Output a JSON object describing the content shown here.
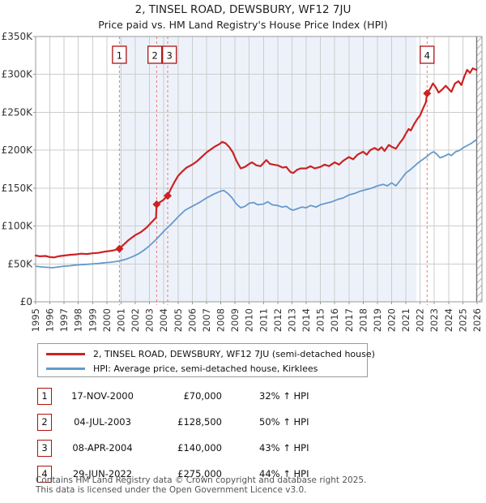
{
  "title": "2, TINSEL ROAD, DEWSBURY, WF12 7JU",
  "subtitle": "Price paid vs. HM Land Registry's House Price Index (HPI)",
  "chart_data": {
    "type": "line",
    "title": "2, TINSEL ROAD, DEWSBURY, WF12 7JU",
    "subtitle": "Price paid vs. HM Land Registry's House Price Index (HPI)",
    "grid": true,
    "legend_position": "below",
    "x_axis": {
      "start_year": 1995,
      "end_year": 2026,
      "tick_labels": [
        "1995",
        "1996",
        "1997",
        "1998",
        "1999",
        "2000",
        "2001",
        "2002",
        "2003",
        "2004",
        "2005",
        "2006",
        "2007",
        "2008",
        "2009",
        "2010",
        "2011",
        "2012",
        "2013",
        "2014",
        "2015",
        "2016",
        "2017",
        "2018",
        "2019",
        "2020",
        "2021",
        "2022",
        "2023",
        "2024",
        "2025",
        "2026"
      ]
    },
    "y_axis": {
      "min_k": 0,
      "max_k": 350,
      "tick_values_k": [
        0,
        50,
        100,
        150,
        200,
        250,
        300,
        350
      ],
      "tick_labels": [
        "£0",
        "£50K",
        "£100K",
        "£150K",
        "£200K",
        "£250K",
        "£300K",
        "£350K"
      ]
    },
    "highlight_span": {
      "from_year": 2000.88,
      "to_year": 2021.75
    },
    "hatch_span": {
      "from_year": 2025.97
    },
    "colors": {
      "property_line": "#cc2222",
      "hpi_line": "#6699cc",
      "highlight": "#edf2fa",
      "sale_dashed_line": "#ee7777",
      "sale_box_border": "#b01111",
      "gridline": "#cccccc",
      "frame": "#999999",
      "hatch": "#b8b8b8"
    },
    "series": [
      {
        "name": "2, TINSEL ROAD, DEWSBURY, WF12 7JU (semi-detached house)",
        "color": "#cc2222",
        "unit": "GBP thousands",
        "points": [
          [
            1995.0,
            61
          ],
          [
            1995.3,
            60
          ],
          [
            1995.7,
            60.5
          ],
          [
            1996.0,
            59
          ],
          [
            1996.3,
            58.5
          ],
          [
            1996.6,
            60
          ],
          [
            1997.0,
            61
          ],
          [
            1997.4,
            62
          ],
          [
            1997.8,
            62.5
          ],
          [
            1998.2,
            63.5
          ],
          [
            1998.6,
            63
          ],
          [
            1999.0,
            64
          ],
          [
            1999.4,
            64.5
          ],
          [
            1999.8,
            66
          ],
          [
            2000.2,
            67
          ],
          [
            2000.5,
            68
          ],
          [
            2000.88,
            70
          ],
          [
            2001.1,
            74
          ],
          [
            2001.5,
            81
          ],
          [
            2002.0,
            88
          ],
          [
            2002.4,
            92
          ],
          [
            2002.8,
            98
          ],
          [
            2003.1,
            104
          ],
          [
            2003.45,
            111
          ],
          [
            2003.5,
            128.5
          ],
          [
            2003.7,
            131
          ],
          [
            2003.95,
            134
          ],
          [
            2004.27,
            140
          ],
          [
            2004.5,
            149
          ],
          [
            2004.75,
            158
          ],
          [
            2005.0,
            166
          ],
          [
            2005.3,
            172
          ],
          [
            2005.6,
            177
          ],
          [
            2006.0,
            181
          ],
          [
            2006.3,
            185
          ],
          [
            2006.6,
            190
          ],
          [
            2007.0,
            197
          ],
          [
            2007.3,
            201
          ],
          [
            2007.6,
            205
          ],
          [
            2007.9,
            208
          ],
          [
            2008.1,
            211
          ],
          [
            2008.35,
            209
          ],
          [
            2008.6,
            204
          ],
          [
            2008.85,
            197
          ],
          [
            2009.1,
            186
          ],
          [
            2009.4,
            176
          ],
          [
            2009.7,
            178
          ],
          [
            2010.0,
            182
          ],
          [
            2010.2,
            184
          ],
          [
            2010.5,
            180
          ],
          [
            2010.8,
            179
          ],
          [
            2011.0,
            183
          ],
          [
            2011.2,
            187
          ],
          [
            2011.45,
            182
          ],
          [
            2011.7,
            181
          ],
          [
            2012.0,
            180
          ],
          [
            2012.35,
            177
          ],
          [
            2012.6,
            178
          ],
          [
            2012.9,
            171
          ],
          [
            2013.1,
            170
          ],
          [
            2013.35,
            174
          ],
          [
            2013.6,
            176
          ],
          [
            2014.0,
            176
          ],
          [
            2014.3,
            179
          ],
          [
            2014.6,
            176
          ],
          [
            2015.0,
            178
          ],
          [
            2015.3,
            181
          ],
          [
            2015.6,
            179
          ],
          [
            2016.0,
            184
          ],
          [
            2016.3,
            181
          ],
          [
            2016.6,
            186
          ],
          [
            2017.0,
            191
          ],
          [
            2017.3,
            188
          ],
          [
            2017.6,
            194
          ],
          [
            2018.0,
            198
          ],
          [
            2018.25,
            194
          ],
          [
            2018.5,
            200
          ],
          [
            2018.8,
            203
          ],
          [
            2019.05,
            200
          ],
          [
            2019.3,
            204
          ],
          [
            2019.5,
            199
          ],
          [
            2019.8,
            207
          ],
          [
            2020.05,
            204
          ],
          [
            2020.3,
            202
          ],
          [
            2020.55,
            209
          ],
          [
            2020.8,
            215
          ],
          [
            2021.0,
            222
          ],
          [
            2021.2,
            228
          ],
          [
            2021.35,
            226
          ],
          [
            2021.6,
            235
          ],
          [
            2021.8,
            241
          ],
          [
            2022.0,
            246
          ],
          [
            2022.2,
            255
          ],
          [
            2022.4,
            263
          ],
          [
            2022.49,
            275
          ],
          [
            2022.7,
            281
          ],
          [
            2022.9,
            288
          ],
          [
            2023.1,
            283
          ],
          [
            2023.3,
            276
          ],
          [
            2023.55,
            280
          ],
          [
            2023.8,
            285
          ],
          [
            2024.0,
            281
          ],
          [
            2024.2,
            277
          ],
          [
            2024.45,
            288
          ],
          [
            2024.7,
            291
          ],
          [
            2024.9,
            286
          ],
          [
            2025.1,
            297
          ],
          [
            2025.3,
            306
          ],
          [
            2025.5,
            302
          ],
          [
            2025.7,
            308
          ],
          [
            2025.95,
            306
          ]
        ]
      },
      {
        "name": "HPI: Average price, semi-detached house, Kirklees",
        "color": "#6699cc",
        "unit": "GBP thousands",
        "points": [
          [
            1995.0,
            47
          ],
          [
            1995.4,
            46
          ],
          [
            1995.8,
            45.5
          ],
          [
            1996.2,
            45
          ],
          [
            1996.6,
            46
          ],
          [
            1997.0,
            47
          ],
          [
            1997.4,
            47.5
          ],
          [
            1997.8,
            48.5
          ],
          [
            1998.2,
            49
          ],
          [
            1998.6,
            49.5
          ],
          [
            1999.0,
            50
          ],
          [
            1999.4,
            50.5
          ],
          [
            1999.8,
            51.5
          ],
          [
            2000.2,
            52
          ],
          [
            2000.6,
            53
          ],
          [
            2001.0,
            54.5
          ],
          [
            2001.4,
            56.5
          ],
          [
            2001.8,
            59.5
          ],
          [
            2002.2,
            63
          ],
          [
            2002.6,
            68
          ],
          [
            2003.0,
            74
          ],
          [
            2003.5,
            83
          ],
          [
            2004.0,
            93
          ],
          [
            2004.27,
            98
          ],
          [
            2004.6,
            104
          ],
          [
            2005.0,
            112
          ],
          [
            2005.5,
            121
          ],
          [
            2006.0,
            126
          ],
          [
            2006.5,
            131
          ],
          [
            2007.0,
            137
          ],
          [
            2007.5,
            142
          ],
          [
            2008.0,
            146
          ],
          [
            2008.2,
            147
          ],
          [
            2008.5,
            143
          ],
          [
            2008.8,
            137
          ],
          [
            2009.1,
            129
          ],
          [
            2009.4,
            124
          ],
          [
            2009.7,
            126
          ],
          [
            2010.0,
            130
          ],
          [
            2010.3,
            131
          ],
          [
            2010.6,
            128
          ],
          [
            2011.0,
            129
          ],
          [
            2011.3,
            132
          ],
          [
            2011.6,
            128
          ],
          [
            2012.0,
            127
          ],
          [
            2012.3,
            125
          ],
          [
            2012.6,
            126
          ],
          [
            2012.9,
            122
          ],
          [
            2013.1,
            121
          ],
          [
            2013.4,
            123
          ],
          [
            2013.7,
            125
          ],
          [
            2014.0,
            124
          ],
          [
            2014.3,
            127
          ],
          [
            2014.7,
            125
          ],
          [
            2015.0,
            128
          ],
          [
            2015.4,
            130
          ],
          [
            2015.8,
            132
          ],
          [
            2016.2,
            135
          ],
          [
            2016.6,
            137
          ],
          [
            2017.0,
            141
          ],
          [
            2017.4,
            143
          ],
          [
            2017.8,
            146
          ],
          [
            2018.2,
            148
          ],
          [
            2018.6,
            150
          ],
          [
            2019.0,
            153
          ],
          [
            2019.4,
            155
          ],
          [
            2019.7,
            153
          ],
          [
            2020.0,
            157
          ],
          [
            2020.3,
            153
          ],
          [
            2020.6,
            160
          ],
          [
            2021.0,
            170
          ],
          [
            2021.3,
            174
          ],
          [
            2021.6,
            179
          ],
          [
            2021.9,
            184
          ],
          [
            2022.2,
            188
          ],
          [
            2022.5,
            192
          ],
          [
            2022.75,
            196
          ],
          [
            2022.95,
            198
          ],
          [
            2023.15,
            195
          ],
          [
            2023.4,
            190
          ],
          [
            2023.7,
            192
          ],
          [
            2024.0,
            195
          ],
          [
            2024.2,
            193
          ],
          [
            2024.5,
            198
          ],
          [
            2024.8,
            200
          ],
          [
            2025.0,
            203
          ],
          [
            2025.3,
            206
          ],
          [
            2025.6,
            209
          ],
          [
            2025.95,
            214
          ]
        ]
      }
    ],
    "sales": [
      {
        "label": "1",
        "year": 2000.88,
        "price_k": 70,
        "date": "17-NOV-2000"
      },
      {
        "label": "2",
        "year": 2003.5,
        "price_k": 128.5,
        "date": "04-JUL-2003"
      },
      {
        "label": "3",
        "year": 2004.27,
        "price_k": 140,
        "date": "08-APR-2004"
      },
      {
        "label": "4",
        "year": 2022.49,
        "price_k": 275,
        "date": "29-JUN-2022"
      }
    ]
  },
  "legend": {
    "series": [
      {
        "label": "2, TINSEL ROAD, DEWSBURY, WF12 7JU (semi-detached house)",
        "color": "#cc2222"
      },
      {
        "label": "HPI: Average price, semi-detached house, Kirklees",
        "color": "#6699cc"
      }
    ]
  },
  "transactions": [
    {
      "num": "1",
      "date": "17-NOV-2000",
      "price": "£70,000",
      "hpi_change": "32% ↑ HPI"
    },
    {
      "num": "2",
      "date": "04-JUL-2003",
      "price": "£128,500",
      "hpi_change": "50% ↑ HPI"
    },
    {
      "num": "3",
      "date": "08-APR-2004",
      "price": "£140,000",
      "hpi_change": "43% ↑ HPI"
    },
    {
      "num": "4",
      "date": "29-JUN-2022",
      "price": "£275,000",
      "hpi_change": "44% ↑ HPI"
    }
  ],
  "footer": {
    "line1": "Contains HM Land Registry data © Crown copyright and database right 2025.",
    "line2": "This data is licensed under the Open Government Licence v3.0."
  }
}
